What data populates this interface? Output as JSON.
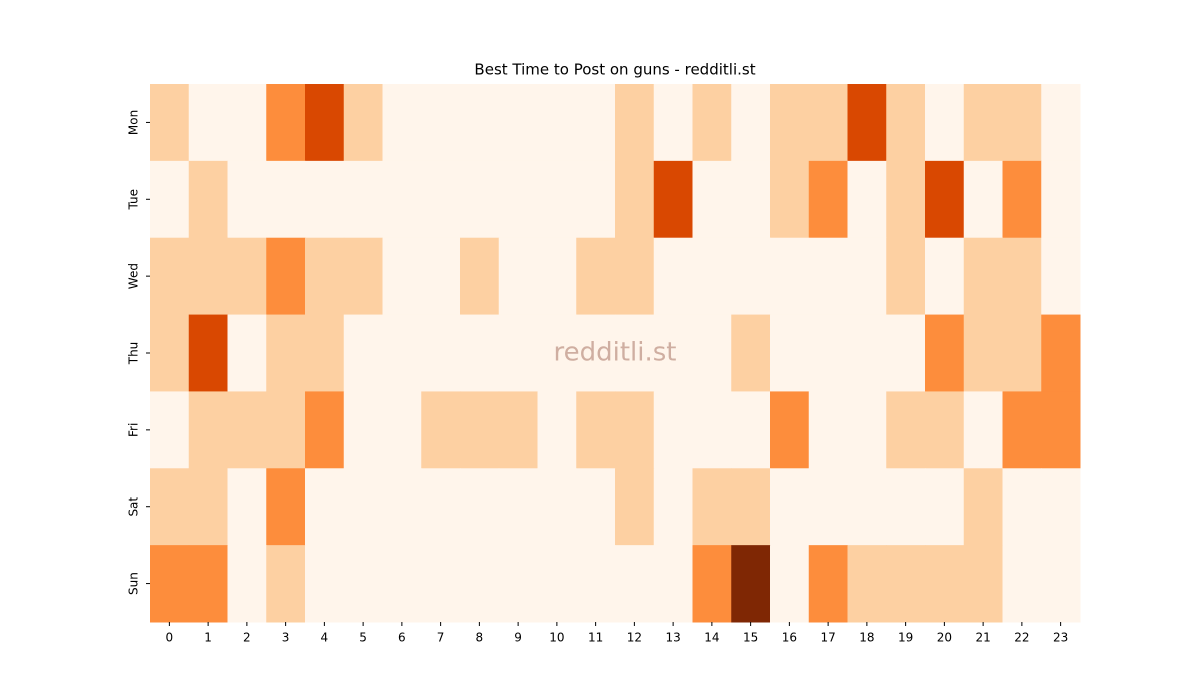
{
  "chart_data": {
    "type": "heatmap",
    "title": "Best Time to Post on guns - redditli.st",
    "annotation": "redditli.st",
    "x": [
      0,
      1,
      2,
      3,
      4,
      5,
      6,
      7,
      8,
      9,
      10,
      11,
      12,
      13,
      14,
      15,
      16,
      17,
      18,
      19,
      20,
      21,
      22,
      23
    ],
    "y": [
      "Mon",
      "Tue",
      "Wed",
      "Thu",
      "Fri",
      "Sat",
      "Sun"
    ],
    "values": [
      [
        1,
        0,
        0,
        2,
        3,
        1,
        0,
        0,
        0,
        0,
        0,
        0,
        1,
        0,
        1,
        0,
        1,
        1,
        3,
        1,
        0,
        1,
        1,
        0
      ],
      [
        0,
        1,
        0,
        0,
        0,
        0,
        0,
        0,
        0,
        0,
        0,
        0,
        1,
        3,
        0,
        0,
        1,
        2,
        0,
        1,
        3,
        0,
        2,
        0
      ],
      [
        1,
        1,
        1,
        2,
        1,
        1,
        0,
        0,
        1,
        0,
        0,
        1,
        1,
        0,
        0,
        0,
        0,
        0,
        0,
        1,
        0,
        1,
        1,
        0
      ],
      [
        1,
        3,
        0,
        1,
        1,
        0,
        0,
        0,
        0,
        0,
        0,
        0,
        0,
        0,
        0,
        1,
        0,
        0,
        0,
        0,
        2,
        1,
        1,
        2
      ],
      [
        0,
        1,
        1,
        1,
        2,
        0,
        0,
        1,
        1,
        1,
        0,
        1,
        1,
        0,
        0,
        0,
        2,
        0,
        0,
        1,
        1,
        0,
        2,
        2
      ],
      [
        1,
        1,
        0,
        2,
        0,
        0,
        0,
        0,
        0,
        0,
        0,
        0,
        1,
        0,
        1,
        1,
        0,
        0,
        0,
        0,
        0,
        1,
        0,
        0
      ],
      [
        2,
        2,
        0,
        1,
        0,
        0,
        0,
        0,
        0,
        0,
        0,
        0,
        0,
        0,
        2,
        4,
        0,
        2,
        1,
        1,
        1,
        1,
        0,
        0
      ]
    ],
    "colormap": [
      "#fff5eb",
      "#fdd0a2",
      "#fd8d3c",
      "#d94801",
      "#7f2704"
    ]
  }
}
